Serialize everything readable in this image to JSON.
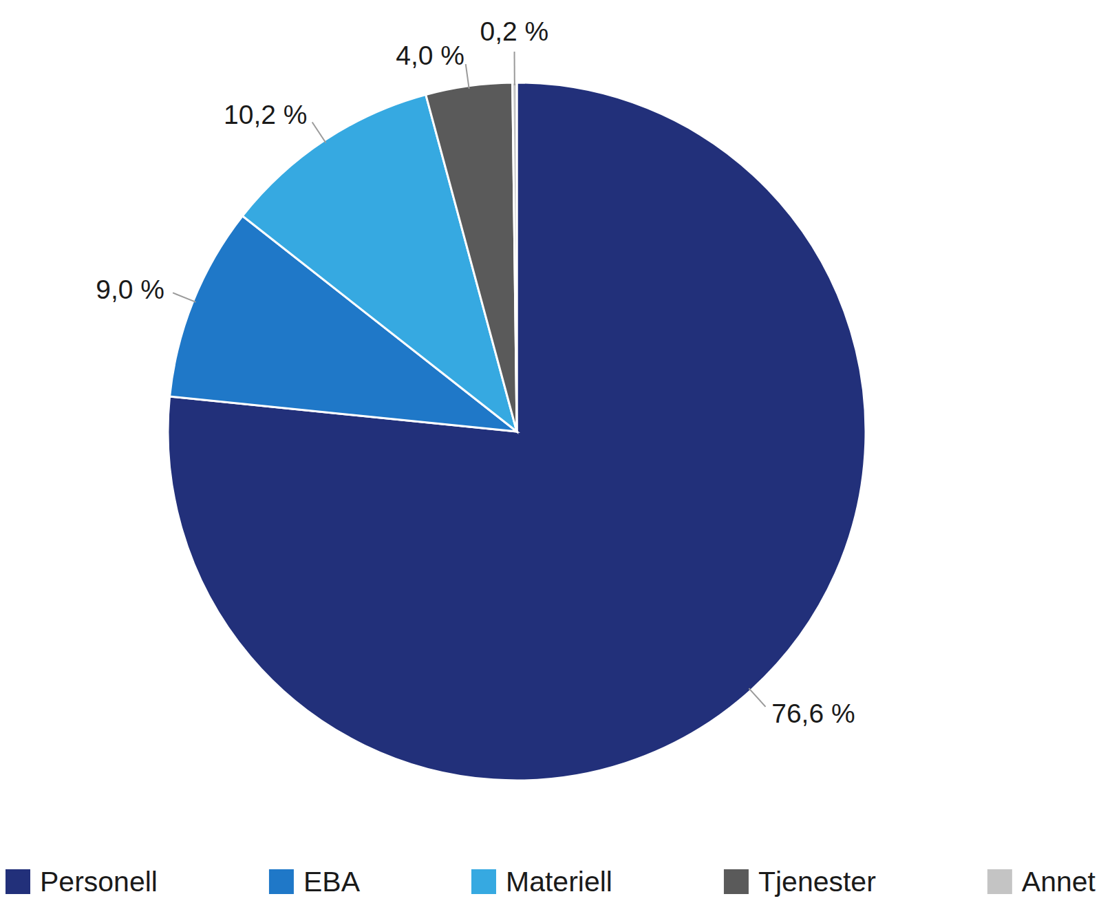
{
  "chart_data": {
    "type": "pie",
    "categories": [
      "Personell",
      "EBA",
      "Materiell",
      "Tjenester",
      "Annet"
    ],
    "values": [
      76.6,
      9.0,
      10.2,
      4.0,
      0.2
    ],
    "value_labels": [
      "76,6 %",
      "9,0 %",
      "10,2 %",
      "4,0 %",
      "0,2 %"
    ],
    "colors": [
      "#22307a",
      "#1f78c8",
      "#36a9e1",
      "#5a5a5a",
      "#c4c4c4"
    ],
    "data_labels": true,
    "legend": "bottom"
  }
}
